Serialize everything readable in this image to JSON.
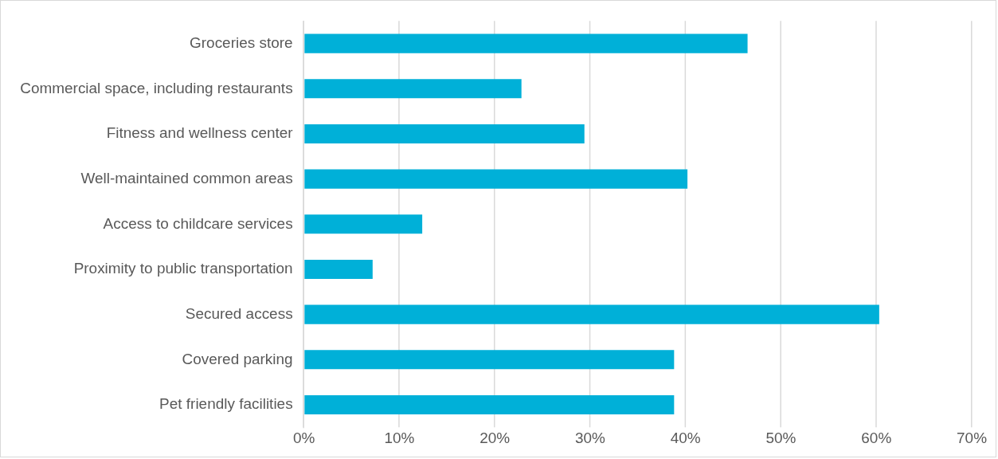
{
  "chart_data": {
    "type": "bar",
    "orientation": "horizontal",
    "categories": [
      "Groceries store",
      "Commercial space, including restaurants",
      "Fitness and wellness center",
      "Well-maintained common areas",
      "Access to childcare services",
      "Proximity to public transportation",
      "Secured access",
      "Covered parking",
      "Pet friendly facilities"
    ],
    "values": [
      46.5,
      22.8,
      29.4,
      40.2,
      12.4,
      7.2,
      60.3,
      38.8,
      38.8
    ],
    "color": "#00b0d8",
    "xlim": [
      0,
      70
    ],
    "xticks": [
      {
        "value": 0,
        "label": "0%"
      },
      {
        "value": 10,
        "label": "10%"
      },
      {
        "value": 20,
        "label": "20%"
      },
      {
        "value": 30,
        "label": "30%"
      },
      {
        "value": 40,
        "label": "40%"
      },
      {
        "value": 50,
        "label": "50%"
      },
      {
        "value": 60,
        "label": "60%"
      },
      {
        "value": 70,
        "label": "70%"
      }
    ],
    "grid": "x",
    "legend": false
  }
}
